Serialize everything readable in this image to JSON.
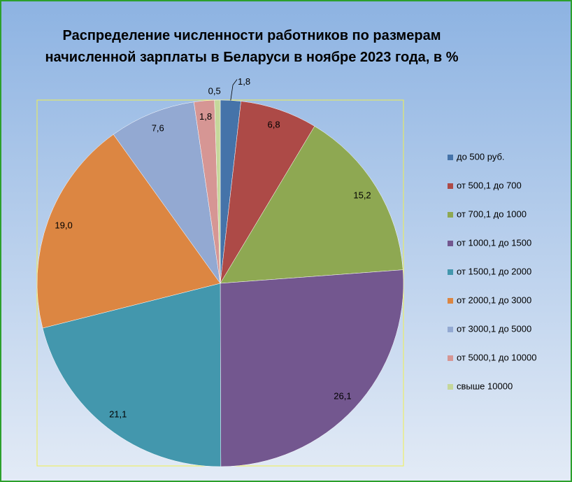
{
  "chart_data": {
    "type": "pie",
    "title": "Распределение численности работников по размерам\nначисленной зарплаты в Беларуси в ноябре 2023 года, в %",
    "categories": [
      "до 500 руб.",
      "от 500,1 до 700",
      "от 700,1 до 1000",
      "от 1000,1 до 1500",
      "от 1500,1 до 2000",
      "от 2000,1 до 3000",
      "от 3000,1 до 5000",
      "от 5000,1 до 10000",
      "свыше 10000"
    ],
    "values": [
      1.8,
      6.8,
      15.2,
      26.1,
      21.1,
      19.0,
      7.6,
      1.8,
      0.5
    ],
    "value_labels": [
      "1,8",
      "6,8",
      "15,2",
      "26,1",
      "21,1",
      "19,0",
      "7,6",
      "1,8",
      "0,5"
    ],
    "colors": [
      "#4573a9",
      "#ad4a47",
      "#8ea852",
      "#73578f",
      "#4397ad",
      "#dc8642",
      "#93a9d2",
      "#d69694",
      "#c5d79b"
    ],
    "legend": "right"
  }
}
